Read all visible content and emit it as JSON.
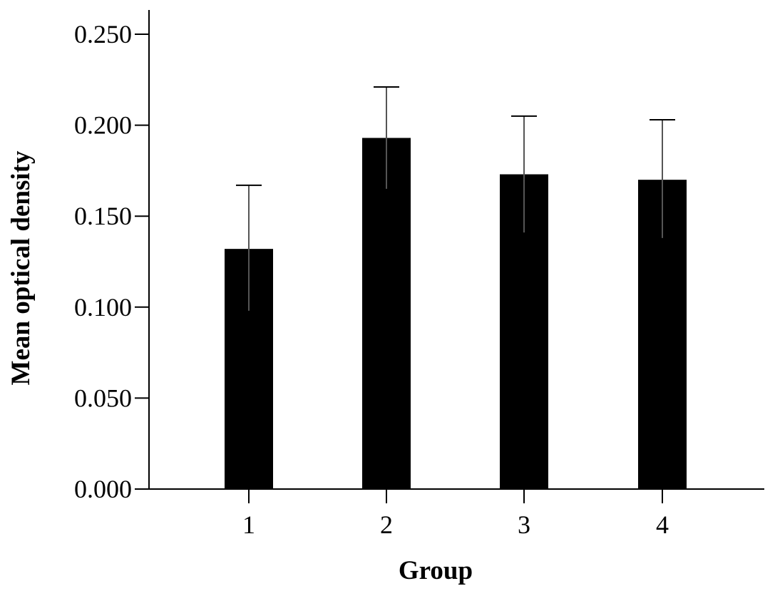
{
  "chart_data": {
    "type": "bar",
    "title": "",
    "xlabel": "Group",
    "ylabel": "Mean optical density",
    "categories": [
      "1",
      "2",
      "3",
      "4"
    ],
    "values": [
      0.132,
      0.193,
      0.173,
      0.17
    ],
    "error_upper": [
      0.167,
      0.221,
      0.205,
      0.203
    ],
    "error_lower": [
      0.098,
      0.165,
      0.141,
      0.138
    ],
    "ylim": [
      0,
      0.25
    ],
    "yticks": [
      0,
      0.05,
      0.1,
      0.15,
      0.2,
      0.25
    ],
    "ytick_labels": [
      "0.000",
      "0.050",
      "0.100",
      "0.150",
      "0.200",
      "0.250"
    ],
    "bar_color": "#000000",
    "grid": false,
    "legend": "none"
  }
}
